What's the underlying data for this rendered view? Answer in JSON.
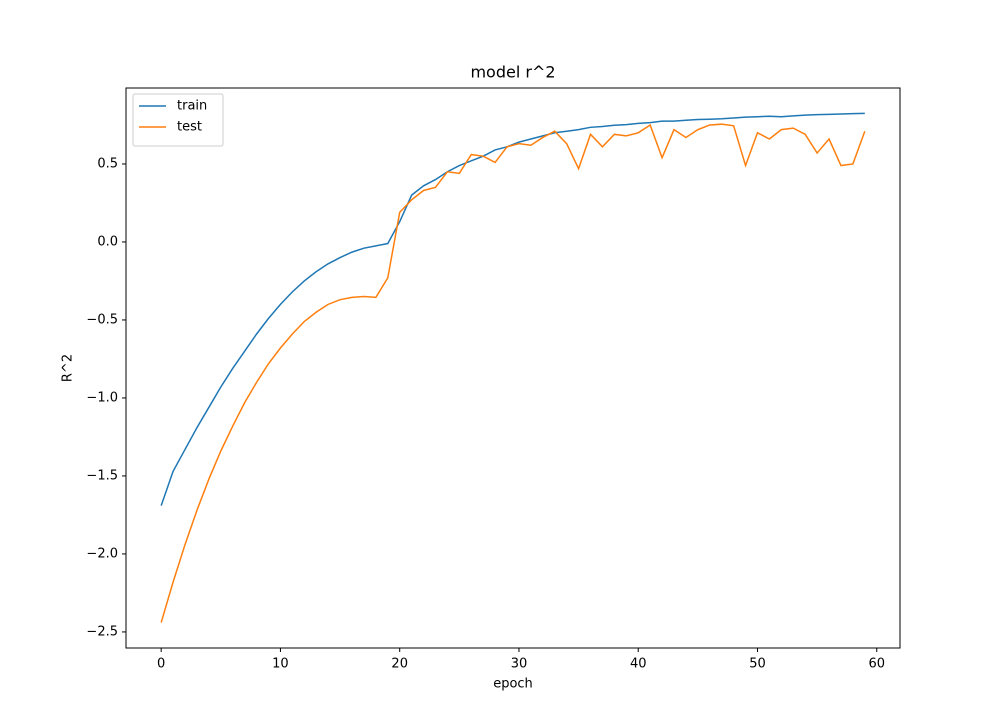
{
  "chart_data": {
    "type": "line",
    "title": "model r^2",
    "x_label": "epoch",
    "y_label": "R^2",
    "x": [
      0,
      1,
      2,
      3,
      4,
      5,
      6,
      7,
      8,
      9,
      10,
      11,
      12,
      13,
      14,
      15,
      16,
      17,
      18,
      19,
      20,
      21,
      22,
      23,
      24,
      25,
      26,
      27,
      28,
      29,
      30,
      31,
      32,
      33,
      34,
      35,
      36,
      37,
      38,
      39,
      40,
      41,
      42,
      43,
      44,
      45,
      46,
      47,
      48,
      49,
      50,
      51,
      52,
      53,
      54,
      55,
      56,
      57,
      58,
      59
    ],
    "series": [
      {
        "name": "train",
        "color": "#1f77b4",
        "values": [
          -1.69,
          -1.47,
          -1.33,
          -1.19,
          -1.06,
          -0.93,
          -0.81,
          -0.7,
          -0.59,
          -0.49,
          -0.4,
          -0.32,
          -0.25,
          -0.19,
          -0.14,
          -0.1,
          -0.065,
          -0.04,
          -0.025,
          -0.01,
          0.13,
          0.3,
          0.36,
          0.4,
          0.45,
          0.49,
          0.52,
          0.55,
          0.59,
          0.61,
          0.64,
          0.66,
          0.68,
          0.7,
          0.71,
          0.72,
          0.735,
          0.74,
          0.748,
          0.752,
          0.76,
          0.765,
          0.775,
          0.775,
          0.78,
          0.785,
          0.787,
          0.79,
          0.795,
          0.8,
          0.803,
          0.806,
          0.803,
          0.808,
          0.813,
          0.816,
          0.818,
          0.82,
          0.823,
          0.824
        ]
      },
      {
        "name": "test",
        "color": "#ff7f0e",
        "values": [
          -2.44,
          -2.18,
          -1.94,
          -1.72,
          -1.52,
          -1.34,
          -1.18,
          -1.03,
          -0.9,
          -0.78,
          -0.68,
          -0.59,
          -0.51,
          -0.45,
          -0.4,
          -0.37,
          -0.355,
          -0.35,
          -0.355,
          -0.23,
          0.19,
          0.27,
          0.33,
          0.35,
          0.45,
          0.44,
          0.56,
          0.55,
          0.51,
          0.61,
          0.63,
          0.62,
          0.67,
          0.71,
          0.63,
          0.47,
          0.69,
          0.61,
          0.69,
          0.68,
          0.7,
          0.75,
          0.54,
          0.72,
          0.67,
          0.72,
          0.75,
          0.755,
          0.745,
          0.49,
          0.7,
          0.66,
          0.72,
          0.73,
          0.69,
          0.57,
          0.66,
          0.49,
          0.5,
          0.71
        ]
      }
    ],
    "xlim": [
      -2.95,
      61.95
    ],
    "xticks": [
      0,
      10,
      20,
      30,
      40,
      50,
      60
    ],
    "ylim": [
      -2.603,
      0.987
    ],
    "yticks": [
      {
        "value": -2.5,
        "label": "−2.5"
      },
      {
        "value": -2,
        "label": "−2.0"
      },
      {
        "value": -1.5,
        "label": "−1.5"
      },
      {
        "value": -1,
        "label": "−1.0"
      },
      {
        "value": -0.5,
        "label": "−0.5"
      },
      {
        "value": 0,
        "label": "0.0"
      },
      0.5
    ],
    "legend": "upper left",
    "grid": false
  }
}
